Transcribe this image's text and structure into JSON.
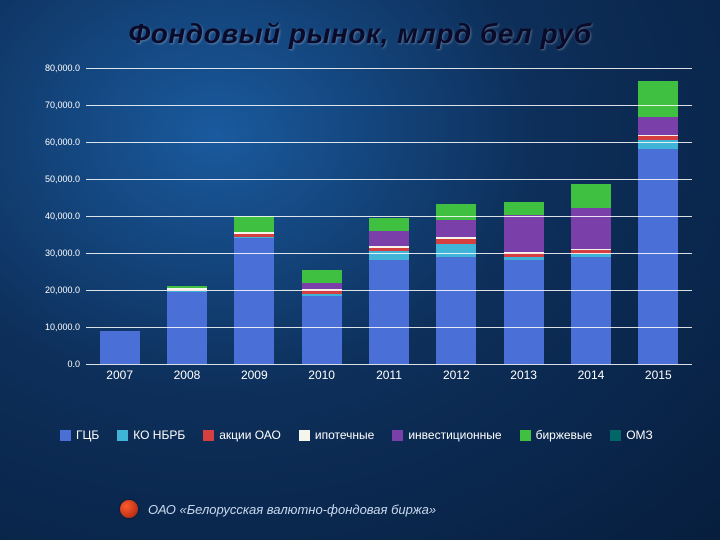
{
  "title": "Фондовый рынок, млрд бел руб",
  "footer": "ОАО «Белорусская валютно-фондовая биржа»",
  "chart": {
    "type": "stacked-bar",
    "ymin": 0,
    "ymax": 80000,
    "ystep": 10000,
    "yticks": [
      "0.0",
      "10,000.0",
      "20,000.0",
      "30,000.0",
      "40,000.0",
      "50,000.0",
      "60,000.0",
      "70,000.0",
      "80,000.0"
    ],
    "gridline_color": "rgba(255,255,255,0.85)",
    "categories": [
      "2007",
      "2008",
      "2009",
      "2010",
      "2011",
      "2012",
      "2013",
      "2014",
      "2015"
    ],
    "series": [
      {
        "key": "gcb",
        "label": "ГЦБ",
        "color": "#4a6fd6"
      },
      {
        "key": "ko",
        "label": "КО НБРБ",
        "color": "#3fb4d6"
      },
      {
        "key": "akcii",
        "label": "акции ОАО",
        "color": "#d63f3f"
      },
      {
        "key": "ipot",
        "label": "ипотечные",
        "color": "#f5f5ec"
      },
      {
        "key": "invest",
        "label": "инвестиционные",
        "color": "#7a3fa8"
      },
      {
        "key": "birzh",
        "label": "биржевые",
        "color": "#40c040"
      },
      {
        "key": "omz",
        "label": "ОМЗ",
        "color": "#006666"
      }
    ],
    "data": {
      "gcb": [
        9000,
        19500,
        34000,
        18500,
        28000,
        29000,
        28000,
        29000,
        58000
      ],
      "ko": [
        0,
        300,
        300,
        400,
        2500,
        3500,
        1000,
        600,
        2500
      ],
      "akcii": [
        0,
        300,
        800,
        1000,
        900,
        1200,
        1000,
        1200,
        1000
      ],
      "ipot": [
        0,
        500,
        500,
        500,
        600,
        600,
        400,
        400,
        400
      ],
      "invest": [
        0,
        0,
        0,
        1500,
        4000,
        4500,
        10000,
        11000,
        5000
      ],
      "birzh": [
        0,
        400,
        4500,
        3500,
        3500,
        4500,
        3500,
        6500,
        9500
      ],
      "omz": [
        0,
        0,
        0,
        0,
        0,
        0,
        0,
        0,
        0
      ]
    },
    "label_fontsize": 12,
    "tick_fontsize": 9
  }
}
